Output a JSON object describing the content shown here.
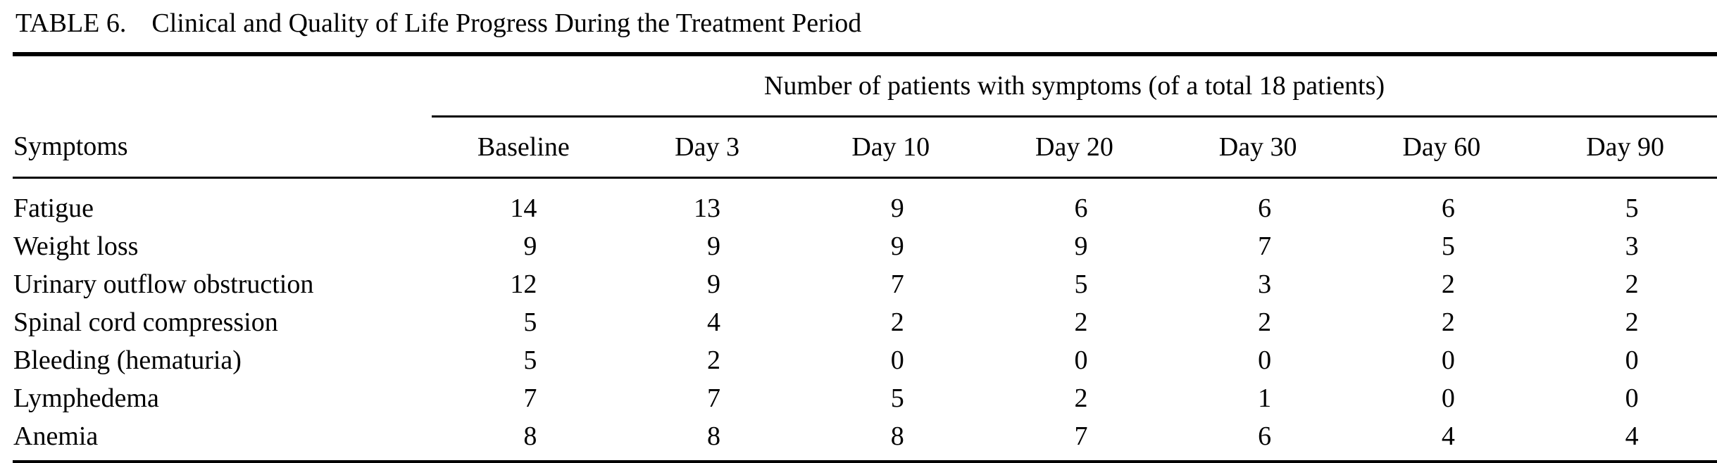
{
  "title": {
    "label": "TABLE 6.",
    "text": "Clinical and Quality of Life Progress During the Treatment Period"
  },
  "table": {
    "group_header": "Number of patients with symptoms (of a total 18 patients)",
    "columns": [
      "Symptoms",
      "Baseline",
      "Day 3",
      "Day 10",
      "Day 20",
      "Day 30",
      "Day 60",
      "Day 90"
    ],
    "rows": [
      {
        "symptom": "Fatigue",
        "values": [
          14,
          13,
          9,
          6,
          6,
          6,
          5
        ]
      },
      {
        "symptom": "Weight loss",
        "values": [
          9,
          9,
          9,
          9,
          7,
          5,
          3
        ]
      },
      {
        "symptom": "Urinary outflow obstruction",
        "values": [
          12,
          9,
          7,
          5,
          3,
          2,
          2
        ]
      },
      {
        "symptom": "Spinal cord compression",
        "values": [
          5,
          4,
          2,
          2,
          2,
          2,
          2
        ]
      },
      {
        "symptom": "Bleeding (hematuria)",
        "values": [
          5,
          2,
          0,
          0,
          0,
          0,
          0
        ]
      },
      {
        "symptom": "Lymphedema",
        "values": [
          7,
          7,
          5,
          2,
          1,
          0,
          0
        ]
      },
      {
        "symptom": "Anemia",
        "values": [
          8,
          8,
          8,
          7,
          6,
          4,
          4
        ]
      }
    ],
    "text_color": "#000000",
    "background_color": "#ffffff"
  }
}
